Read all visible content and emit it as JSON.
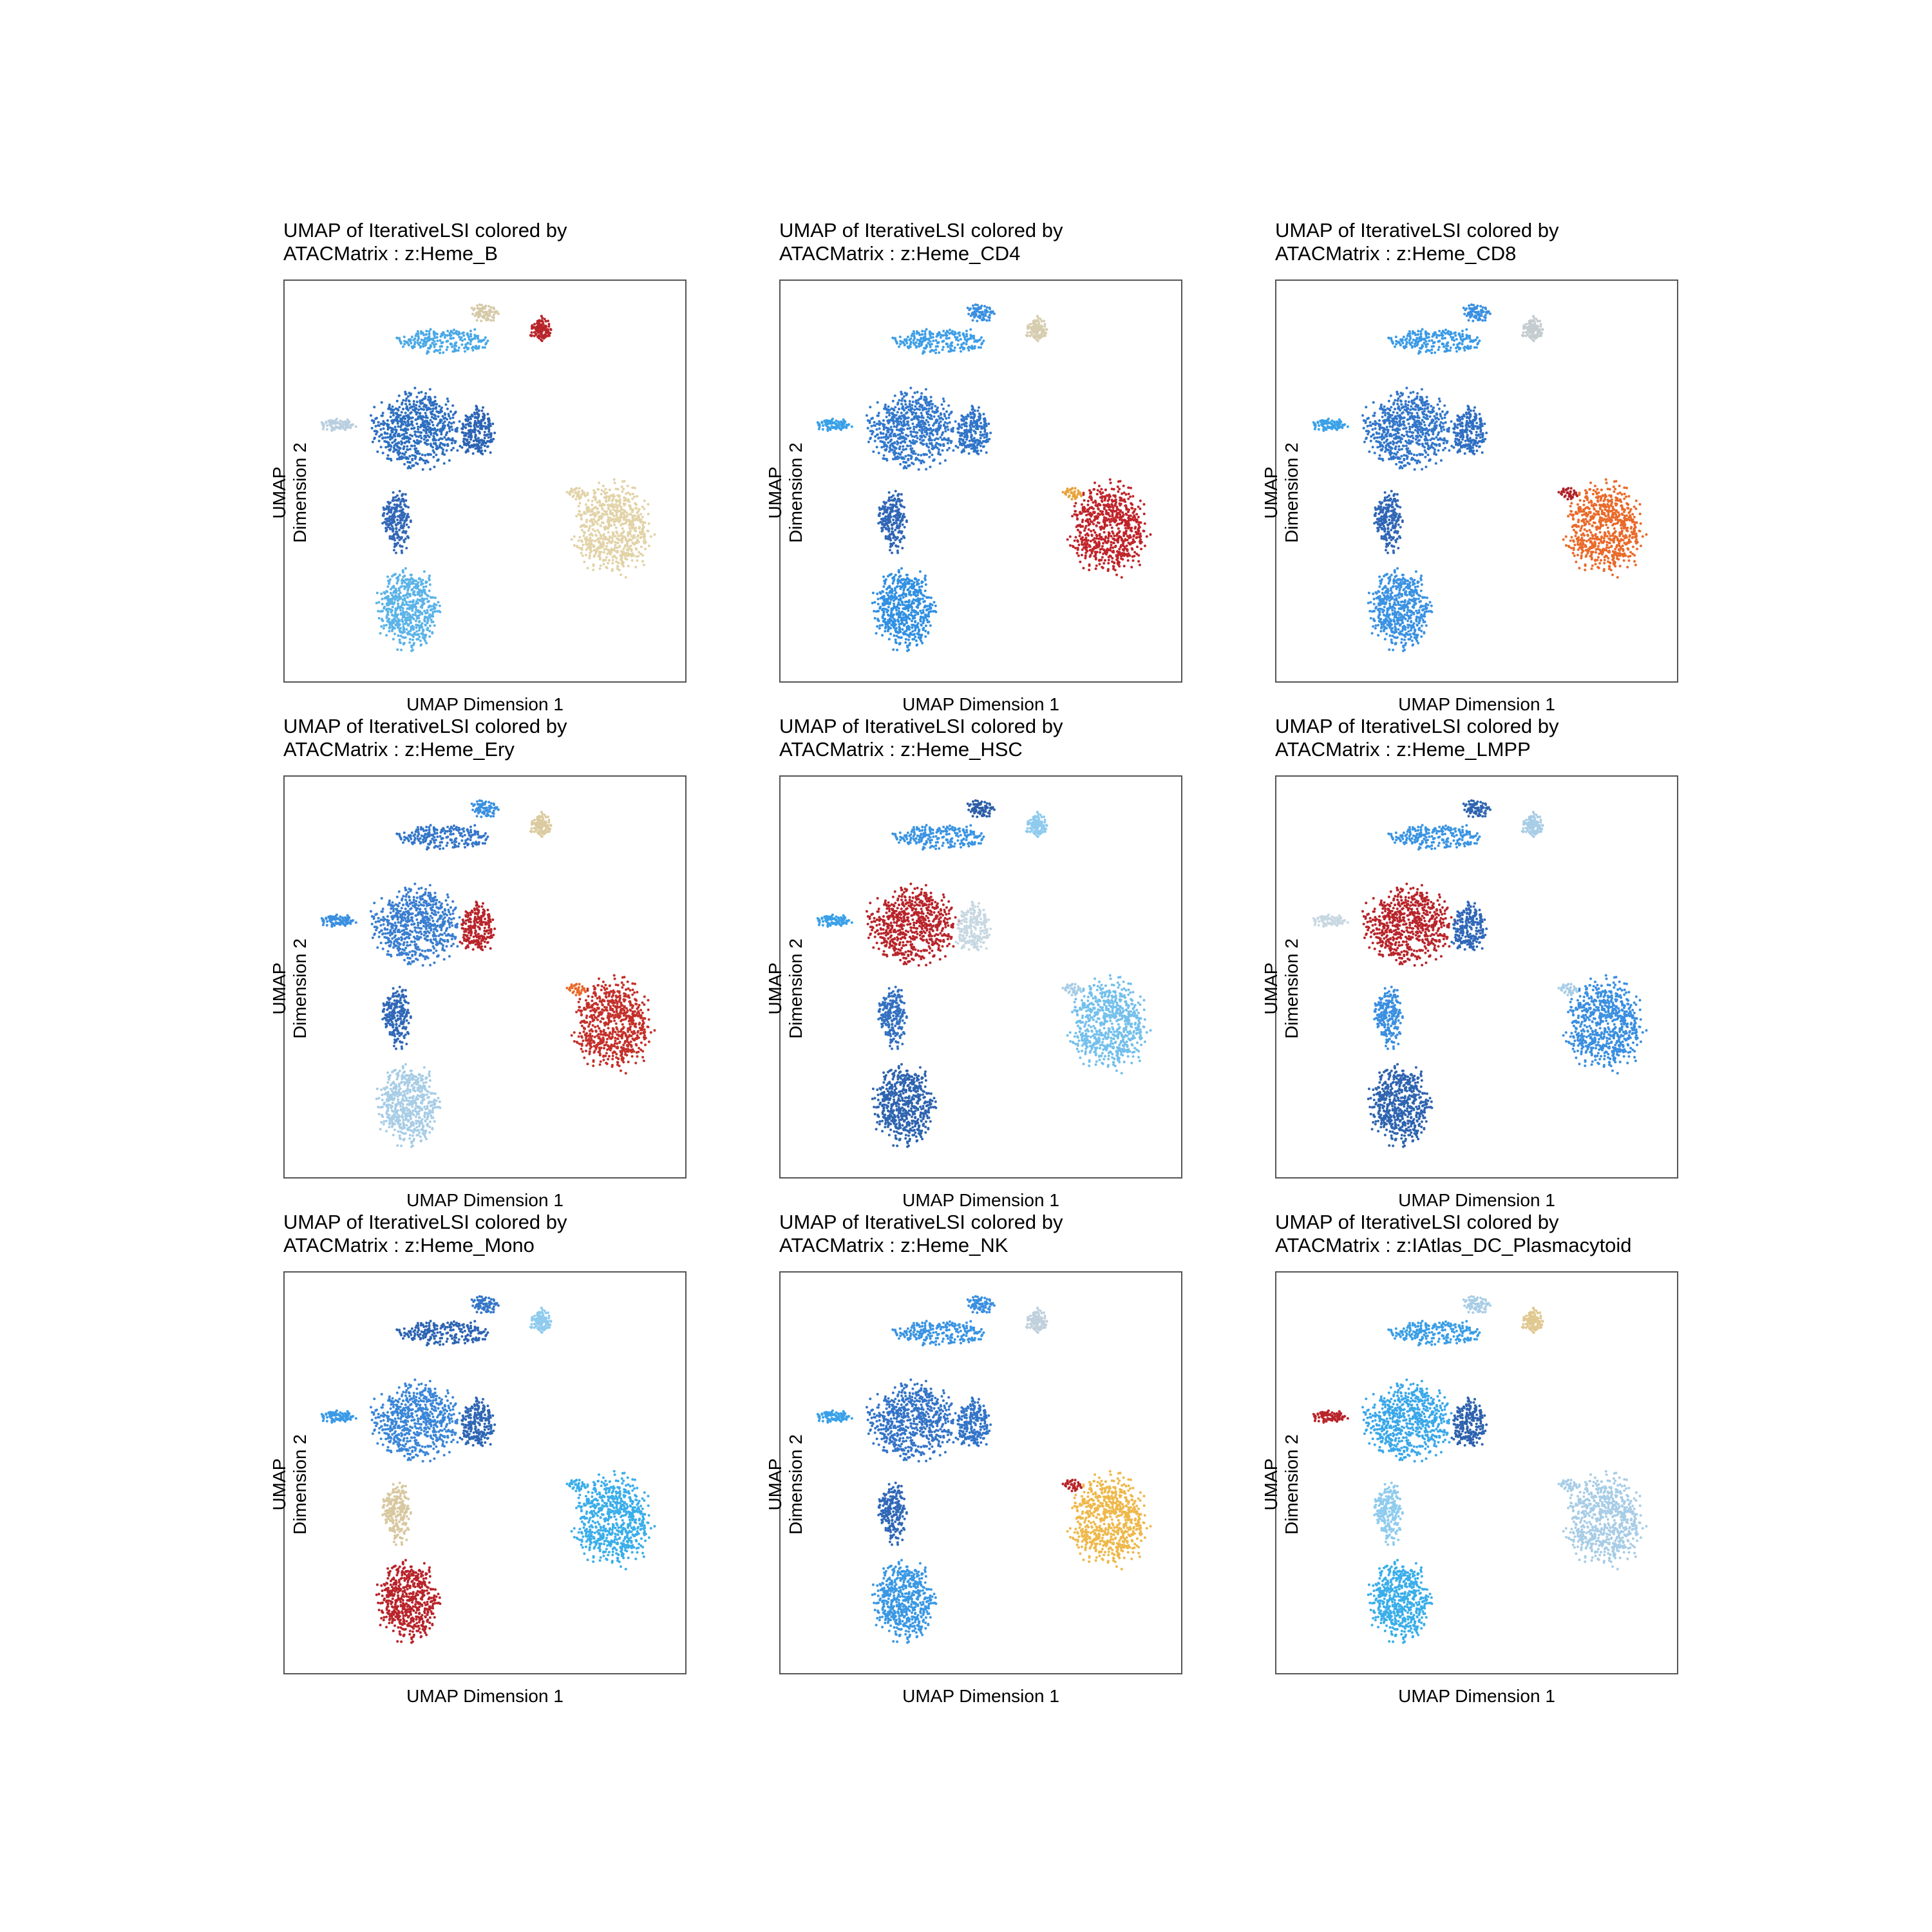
{
  "chart_data": [
    {
      "type": "scatter",
      "title_line1": "UMAP of IterativeLSI colored by",
      "title_line2": "ATACMatrix : z:Heme_B",
      "xlabel": "UMAP Dimension 1",
      "ylabel": "UMAP Dimension 2",
      "cluster_colors": {
        "top_arm": "#4aa8e6",
        "top_tip": "#d6c9a8",
        "top_right": "#b8242a",
        "left_arm": "#b9cfe0",
        "central": "#2d6fc0",
        "right_lobe": "#2c64b4",
        "neck": "#3368b8",
        "bottom": "#5bb3e8",
        "t_cluster": "#e2d3a8",
        "t_tip": "#e2d3a8"
      }
    },
    {
      "type": "scatter",
      "title_line1": "UMAP of IterativeLSI colored by",
      "title_line2": "ATACMatrix : z:Heme_CD4",
      "xlabel": "UMAP Dimension 1",
      "ylabel": "UMAP Dimension 2",
      "cluster_colors": {
        "top_arm": "#3e9ee6",
        "top_tip": "#3a8fe0",
        "top_right": "#d6cdb0",
        "left_arm": "#3aa0e8",
        "central": "#3278cc",
        "right_lobe": "#2f74c8",
        "neck": "#3066b6",
        "bottom": "#3190e2",
        "t_cluster": "#c0242a",
        "t_tip": "#e8a23a"
      }
    },
    {
      "type": "scatter",
      "title_line1": "UMAP of IterativeLSI colored by",
      "title_line2": "ATACMatrix : z:Heme_CD8",
      "xlabel": "UMAP Dimension 1",
      "ylabel": "UMAP Dimension 2",
      "cluster_colors": {
        "top_arm": "#3a9ae6",
        "top_tip": "#3a8fe0",
        "top_right": "#c4ccd0",
        "left_arm": "#3aa0e8",
        "central": "#3276ca",
        "right_lobe": "#2f6fc2",
        "neck": "#3066b6",
        "bottom": "#3b92e2",
        "t_cluster": "#ea6a2a",
        "t_tip": "#b0222a"
      }
    },
    {
      "type": "scatter",
      "title_line1": "UMAP of IterativeLSI colored by",
      "title_line2": "ATACMatrix : z:Heme_Ery",
      "xlabel": "UMAP Dimension 1",
      "ylabel": "UMAP Dimension 2",
      "cluster_colors": {
        "top_arm": "#3576c8",
        "top_tip": "#3a90e0",
        "top_right": "#dccba0",
        "left_arm": "#3a8fe0",
        "central": "#3a7ed0",
        "right_lobe": "#b8242a",
        "neck": "#3068b8",
        "bottom": "#a8cde6",
        "t_cluster": "#c4302a",
        "t_tip": "#ea6a2a"
      }
    },
    {
      "type": "scatter",
      "title_line1": "UMAP of IterativeLSI colored by",
      "title_line2": "ATACMatrix : z:Heme_HSC",
      "xlabel": "UMAP Dimension 1",
      "ylabel": "UMAP Dimension 2",
      "cluster_colors": {
        "top_arm": "#3a94e2",
        "top_tip": "#2c5ea8",
        "top_right": "#8ecbee",
        "left_arm": "#3aa0e8",
        "central": "#b8242a",
        "right_lobe": "#c8d8e2",
        "neck": "#3370c0",
        "bottom": "#2e64b0",
        "t_cluster": "#74c0ec",
        "t_tip": "#a8cde6"
      }
    },
    {
      "type": "scatter",
      "title_line1": "UMAP of IterativeLSI colored by",
      "title_line2": "ATACMatrix : z:Heme_LMPP",
      "xlabel": "UMAP Dimension 1",
      "ylabel": "UMAP Dimension 2",
      "cluster_colors": {
        "top_arm": "#3a94e2",
        "top_tip": "#2e64b0",
        "top_right": "#a8cde6",
        "left_arm": "#c8d8e2",
        "central": "#b8242a",
        "right_lobe": "#3068b8",
        "neck": "#3a8fe0",
        "bottom": "#2e64b0",
        "t_cluster": "#3a8fe0",
        "t_tip": "#a8cde6"
      }
    },
    {
      "type": "scatter",
      "title_line1": "UMAP of IterativeLSI colored by",
      "title_line2": "ATACMatrix : z:Heme_Mono",
      "xlabel": "UMAP Dimension 1",
      "ylabel": "UMAP Dimension 2",
      "cluster_colors": {
        "top_arm": "#2d64b2",
        "top_tip": "#3576c8",
        "top_right": "#8ecbee",
        "left_arm": "#3a9ae6",
        "central": "#3a86d8",
        "right_lobe": "#2e66b4",
        "neck": "#d8c8a0",
        "bottom": "#b8242a",
        "t_cluster": "#3aaeea",
        "t_tip": "#3aaeea"
      }
    },
    {
      "type": "scatter",
      "title_line1": "UMAP of IterativeLSI colored by",
      "title_line2": "ATACMatrix : z:Heme_NK",
      "xlabel": "UMAP Dimension 1",
      "ylabel": "UMAP Dimension 2",
      "cluster_colors": {
        "top_arm": "#3a94e2",
        "top_tip": "#3a8fe0",
        "top_right": "#c0d0dc",
        "left_arm": "#3aa0e8",
        "central": "#3474c8",
        "right_lobe": "#3274c8",
        "neck": "#3068b8",
        "bottom": "#3a98e4",
        "t_cluster": "#eeb84a",
        "t_tip": "#b8242a"
      }
    },
    {
      "type": "scatter",
      "title_line1": "UMAP of IterativeLSI colored by",
      "title_line2": "ATACMatrix : z:IAtlas_DC_Plasmacytoid",
      "xlabel": "UMAP Dimension 1",
      "ylabel": "UMAP Dimension 2",
      "cluster_colors": {
        "top_arm": "#3a9ee6",
        "top_tip": "#a8cde6",
        "top_right": "#e0c890",
        "left_arm": "#b8242a",
        "central": "#3aa8ea",
        "right_lobe": "#2e62ae",
        "neck": "#8ecbee",
        "bottom": "#3aaeea",
        "t_cluster": "#a8cde6",
        "t_tip": "#a8cde6"
      }
    }
  ]
}
